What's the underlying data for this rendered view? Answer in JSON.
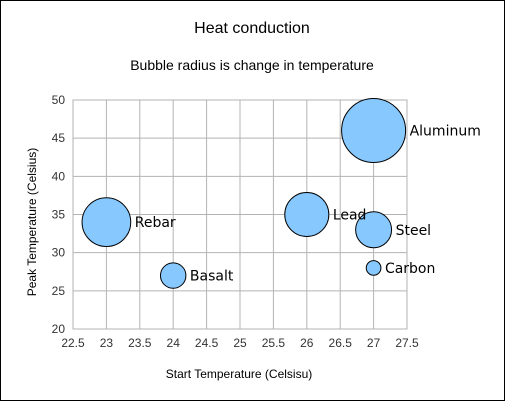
{
  "chart_data": {
    "type": "scatter",
    "subtype": "bubble",
    "title": "Heat conduction",
    "subtitle": "Bubble radius is change in temperature",
    "xlabel": "Start Temperature (Celsisu)",
    "ylabel": "Peak Temperature (Celsius)",
    "xlim": [
      22.5,
      27.5
    ],
    "ylim": [
      20,
      50
    ],
    "xticks": [
      "22.5",
      "23",
      "23.5",
      "24",
      "24.5",
      "25",
      "25.5",
      "26",
      "26.5",
      "27",
      "27.5"
    ],
    "yticks": [
      "20",
      "25",
      "30",
      "35",
      "40",
      "45",
      "50"
    ],
    "grid": true,
    "legend": "none",
    "bubble_color": "#87c8ff",
    "points": [
      {
        "label": "Rebar",
        "x": 23,
        "y": 34,
        "r": 11
      },
      {
        "label": "Basalt",
        "x": 24,
        "y": 27,
        "r": 3
      },
      {
        "label": "Lead",
        "x": 26,
        "y": 35,
        "r": 9
      },
      {
        "label": "Aluminum",
        "x": 27,
        "y": 46,
        "r": 19
      },
      {
        "label": "Steel",
        "x": 27,
        "y": 33,
        "r": 6
      },
      {
        "label": "Carbon",
        "x": 27,
        "y": 28,
        "r": 1
      }
    ]
  }
}
